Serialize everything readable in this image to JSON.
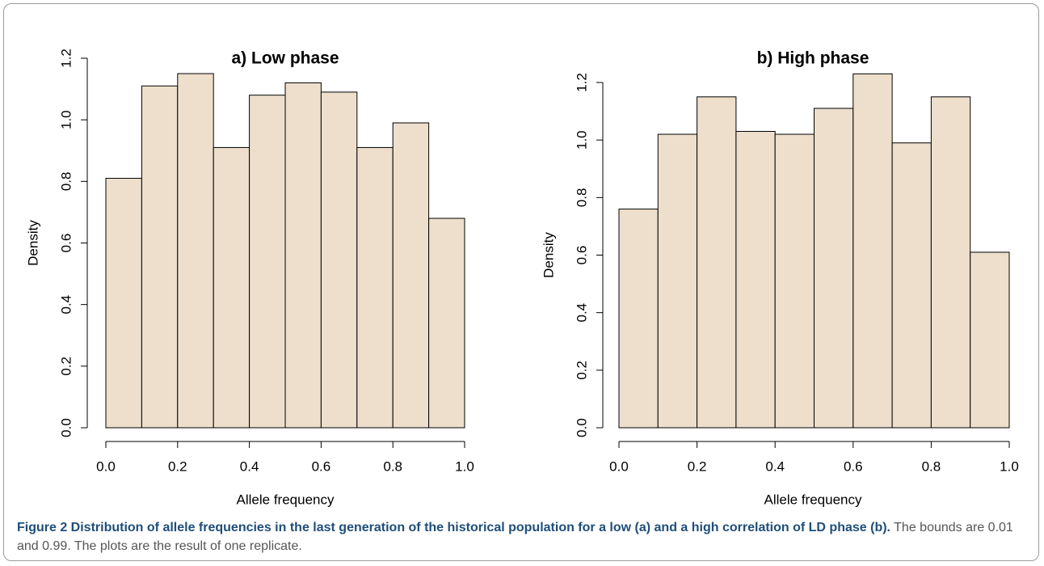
{
  "chart_data": [
    {
      "type": "histogram",
      "title": "a) Low phase",
      "x_label": "Allele frequency",
      "y_label": "Density",
      "bins": [
        0,
        0.1,
        0.2,
        0.3,
        0.4,
        0.5,
        0.6,
        0.7,
        0.8,
        0.9,
        1
      ],
      "values": [
        0.81,
        1.11,
        1.15,
        0.91,
        1.08,
        1.12,
        1.09,
        0.91,
        0.99,
        0.68
      ],
      "color": "#eddfcc",
      "xlim": [
        0,
        1
      ],
      "xticks": [
        {
          "value": 0,
          "label": "0.0"
        },
        0.2,
        0.4,
        0.6,
        0.8,
        {
          "value": 1,
          "label": "1.0"
        }
      ],
      "ylim": [
        0,
        1.2
      ],
      "yticks": [
        {
          "value": 0,
          "label": "0.0"
        },
        0.2,
        0.4,
        0.6,
        0.8,
        {
          "value": 1,
          "label": "1.0"
        },
        1.2
      ]
    },
    {
      "type": "histogram",
      "title": "b) High phase",
      "x_label": "Allele frequency",
      "y_label": "Density",
      "bins": [
        0,
        0.1,
        0.2,
        0.3,
        0.4,
        0.5,
        0.6,
        0.7,
        0.8,
        0.9,
        1
      ],
      "values": [
        0.76,
        1.02,
        1.15,
        1.03,
        1.02,
        1.11,
        1.23,
        0.99,
        1.15,
        0.61
      ],
      "color": "#eddfcc",
      "xlim": [
        0,
        1
      ],
      "xticks": [
        {
          "value": 0,
          "label": "0.0"
        },
        0.2,
        0.4,
        0.6,
        0.8,
        {
          "value": 1,
          "label": "1.0"
        }
      ],
      "ylim": [
        0,
        1.2
      ],
      "yticks": [
        {
          "value": 0,
          "label": "0.0"
        },
        0.2,
        0.4,
        0.6,
        0.8,
        {
          "value": 1,
          "label": "1.0"
        },
        1.2
      ]
    }
  ],
  "caption": {
    "title": "Figure 2 Distribution of allele frequencies in the last generation of the historical population for a low (a) and a high correlation of LD phase (b).",
    "text": "The bounds are 0.01 and 0.99. The plots are the result of one replicate."
  }
}
